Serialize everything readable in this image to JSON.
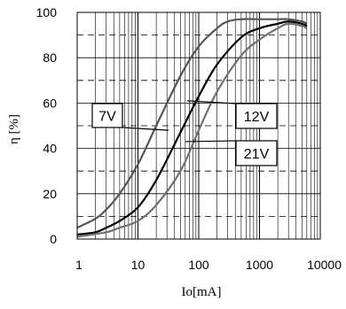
{
  "chart_data": {
    "type": "line",
    "xlabel": "Io[mA]",
    "ylabel": "η [%]",
    "xscale": "log",
    "xlim": [
      1,
      10000
    ],
    "ylim": [
      0,
      100
    ],
    "x_ticks": [
      "1",
      "10",
      "100",
      "1000",
      "10000"
    ],
    "y_ticks": [
      "0",
      "20",
      "40",
      "60",
      "80",
      "100"
    ],
    "grid": true,
    "series": [
      {
        "name": "7V",
        "color": "#555555",
        "x": [
          1,
          2,
          3,
          5,
          10,
          20,
          50,
          100,
          200,
          300,
          500,
          1000,
          2000,
          3000,
          5000,
          6000
        ],
        "y": [
          5,
          9,
          13,
          20,
          33,
          50,
          72,
          85,
          93,
          96,
          97,
          97,
          97,
          97,
          96,
          95
        ]
      },
      {
        "name": "12V",
        "color": "#000000",
        "x": [
          1,
          2,
          3,
          5,
          10,
          20,
          50,
          100,
          200,
          500,
          1000,
          2000,
          3000,
          5000,
          6000
        ],
        "y": [
          2,
          3,
          5,
          8,
          14,
          26,
          47,
          63,
          77,
          89,
          93,
          95,
          96,
          95,
          94
        ]
      },
      {
        "name": "21V",
        "color": "#707070",
        "x": [
          1,
          3,
          5,
          10,
          20,
          50,
          100,
          200,
          500,
          1000,
          2000,
          3000,
          5000,
          6000
        ],
        "y": [
          1,
          3,
          5,
          8,
          15,
          30,
          48,
          65,
          81,
          88,
          93,
          95,
          94,
          93
        ]
      }
    ],
    "callouts": [
      {
        "label": "7V",
        "series": "7V"
      },
      {
        "label": "12V",
        "series": "12V"
      },
      {
        "label": "21V",
        "series": "21V"
      }
    ]
  }
}
